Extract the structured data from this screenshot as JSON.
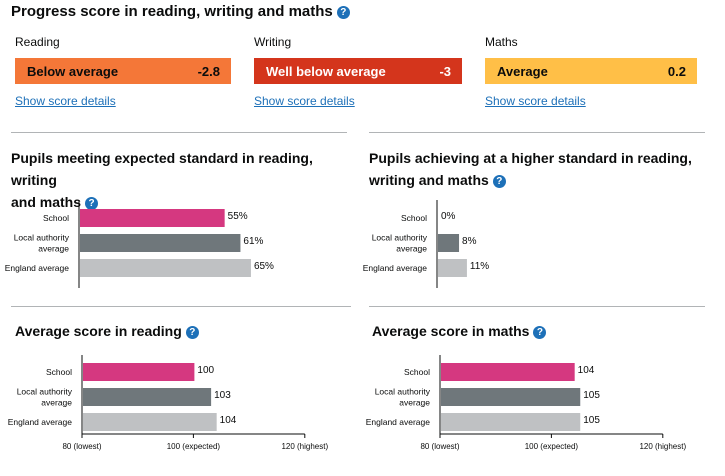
{
  "header": {
    "title": "Progress score in reading, writing and maths",
    "help_icon": "question-circle-icon"
  },
  "progress": [
    {
      "subject": "Reading",
      "label": "Below average",
      "score": "-2.8",
      "color": "#f47738",
      "link": "Show score details"
    },
    {
      "subject": "Writing",
      "label": "Well below average",
      "score": "-3",
      "color": "#d4351c",
      "link": "Show score details"
    },
    {
      "subject": "Maths",
      "label": "Average",
      "score": "0.2",
      "color": "#ffbf47",
      "link": "Show score details"
    }
  ],
  "sections": {
    "expected": {
      "title_line1": "Pupils meeting expected standard in reading, writing",
      "title_line2": "and maths"
    },
    "higher": {
      "title_line1": "Pupils achieving at a higher standard in reading,",
      "title_line2": "writing and maths"
    },
    "reading": {
      "title": "Average score in reading"
    },
    "maths": {
      "title": "Average score in maths"
    }
  },
  "colors": {
    "school": "#d53880",
    "local_authority": "#6f777b",
    "england": "#bfc1c3",
    "link": "#1d70b8"
  },
  "chart_data": [
    {
      "type": "bar",
      "orientation": "horizontal",
      "unit": "%",
      "categories": [
        [
          "School"
        ],
        [
          "Local authority",
          "average"
        ],
        [
          "England average"
        ]
      ],
      "values": [
        55,
        61,
        65
      ],
      "labels": [
        "55%",
        "61%",
        "65%"
      ],
      "xlim": [
        0,
        100
      ]
    },
    {
      "type": "bar",
      "orientation": "horizontal",
      "unit": "%",
      "categories": [
        [
          "School"
        ],
        [
          "Local authority",
          "average"
        ],
        [
          "England average"
        ]
      ],
      "values": [
        0,
        8,
        11
      ],
      "labels": [
        "0%",
        "8%",
        "11%"
      ],
      "xlim": [
        0,
        100
      ]
    },
    {
      "type": "bar",
      "orientation": "horizontal",
      "categories": [
        [
          "School"
        ],
        [
          "Local authority",
          "average"
        ],
        [
          "England average"
        ]
      ],
      "values": [
        100,
        103,
        104
      ],
      "labels": [
        "100",
        "103",
        "104"
      ],
      "xlim": [
        80,
        120
      ],
      "ticks": [
        "80 (lowest)",
        "100 (expected)",
        "120 (highest)"
      ]
    },
    {
      "type": "bar",
      "orientation": "horizontal",
      "categories": [
        [
          "School"
        ],
        [
          "Local authority",
          "average"
        ],
        [
          "England average"
        ]
      ],
      "values": [
        104,
        105,
        105
      ],
      "labels": [
        "104",
        "105",
        "105"
      ],
      "xlim": [
        80,
        120
      ],
      "ticks": [
        "80 (lowest)",
        "100 (expected)",
        "120 (highest)"
      ]
    }
  ]
}
